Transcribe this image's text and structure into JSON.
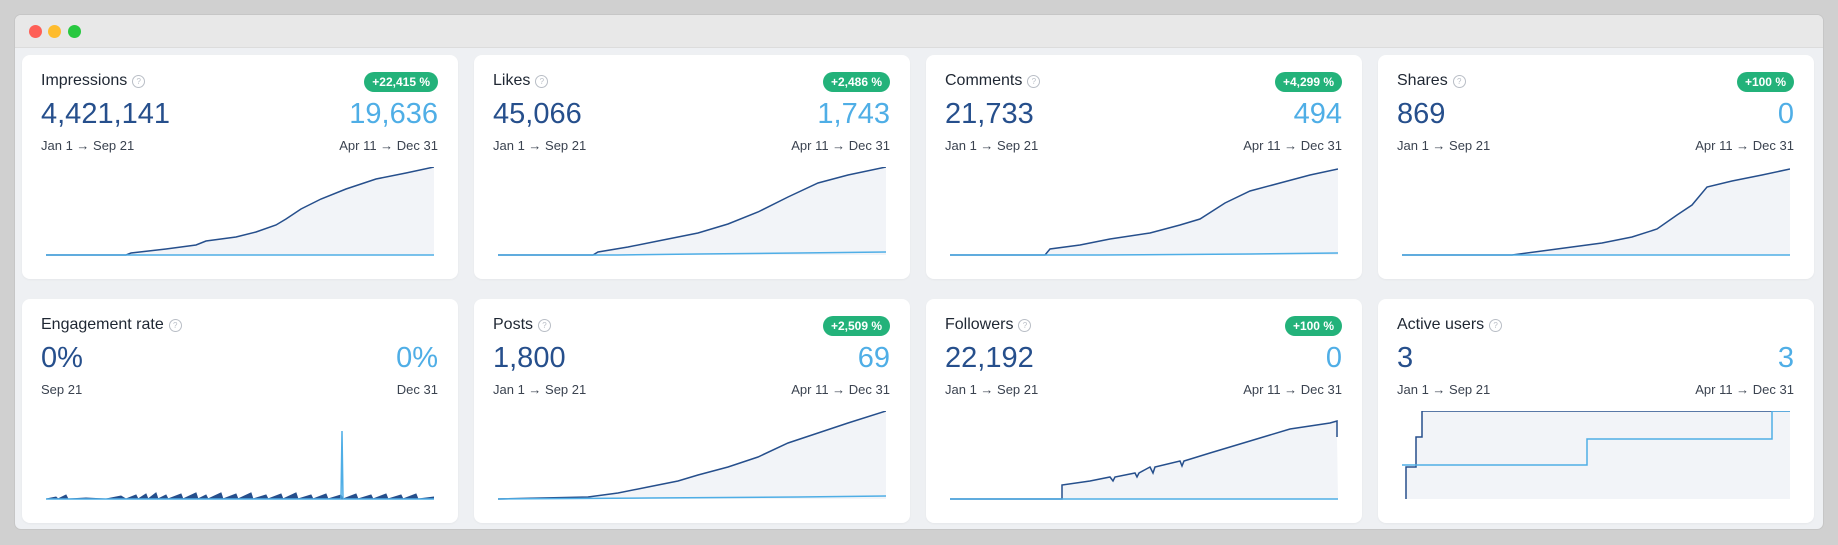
{
  "window": {
    "controls": [
      "close-button",
      "minimize-button",
      "zoom-button"
    ]
  },
  "colors": {
    "primary": "#264f8c",
    "secondary": "#4faee6",
    "badge": "#23b27a"
  },
  "cards": [
    {
      "title": "Impressions",
      "badge": "+22,415 %",
      "value_left": "4,421,141",
      "value_right": "19,636",
      "period_left": "Jan 1 → Sep 21",
      "period_right": "Apr 11 → Dec 31"
    },
    {
      "title": "Likes",
      "badge": "+2,486 %",
      "value_left": "45,066",
      "value_right": "1,743",
      "period_left": "Jan 1 → Sep 21",
      "period_right": "Apr 11 → Dec 31"
    },
    {
      "title": "Comments",
      "badge": "+4,299 %",
      "value_left": "21,733",
      "value_right": "494",
      "period_left": "Jan 1 → Sep 21",
      "period_right": "Apr 11 → Dec 31"
    },
    {
      "title": "Shares",
      "badge": "+100 %",
      "value_left": "869",
      "value_right": "0",
      "period_left": "Jan 1 → Sep 21",
      "period_right": "Apr 11 → Dec 31"
    },
    {
      "title": "Engagement rate",
      "badge": "",
      "value_left": "0%",
      "value_right": "0%",
      "period_left": "Sep 21",
      "period_right": "Dec 31"
    },
    {
      "title": "Posts",
      "badge": "+2,509 %",
      "value_left": "1,800",
      "value_right": "69",
      "period_left": "Jan 1 → Sep 21",
      "period_right": "Apr 11 → Dec 31"
    },
    {
      "title": "Followers",
      "badge": "+100 %",
      "value_left": "22,192",
      "value_right": "0",
      "period_left": "Jan 1 → Sep 21",
      "period_right": "Apr 11 → Dec 31"
    },
    {
      "title": "Active users",
      "badge": "",
      "value_left": "3",
      "value_right": "3",
      "period_left": "Jan 1 → Sep 21",
      "period_right": "Apr 11 → Dec 31"
    }
  ]
}
